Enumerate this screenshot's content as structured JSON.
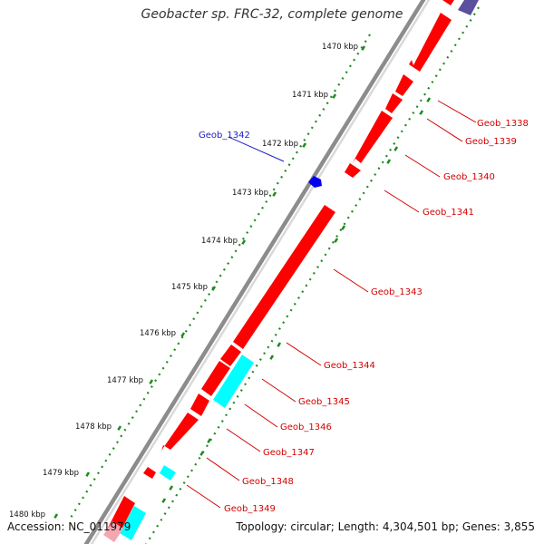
{
  "title": "Geobacter sp. FRC-32, complete genome",
  "footer": {
    "accession": "Accession: NC_011979",
    "summary": "Topology: circular; Length: 4,304,501 bp; Genes: 3,855"
  },
  "colors": {
    "forward_gene": "#ff0000",
    "reverse_gene": "#ff0000",
    "rna_gene": "#00ffff",
    "highlight_gene": "#0000ee",
    "tick": "#1f8a1f",
    "backbone": "#8c8c8c"
  },
  "scale_labels": [
    "1470 kbp",
    "1471 kbp",
    "1472 kbp",
    "1473 kbp",
    "1474 kbp",
    "1475 kbp",
    "1476 kbp",
    "1477 kbp",
    "1478 kbp",
    "1479 kbp",
    "1480 kbp"
  ],
  "gene_labels": [
    {
      "text": "Geob_1338",
      "color": "red"
    },
    {
      "text": "Geob_1339",
      "color": "red"
    },
    {
      "text": "Geob_1340",
      "color": "red"
    },
    {
      "text": "Geob_1341",
      "color": "red"
    },
    {
      "text": "Geob_1342",
      "color": "blue"
    },
    {
      "text": "Geob_1343",
      "color": "red"
    },
    {
      "text": "Geob_1344",
      "color": "red"
    },
    {
      "text": "Geob_1345",
      "color": "red"
    },
    {
      "text": "Geob_1346",
      "color": "red"
    },
    {
      "text": "Geob_1347",
      "color": "red"
    },
    {
      "text": "Geob_1348",
      "color": "red"
    },
    {
      "text": "Geob_1349",
      "color": "red"
    }
  ]
}
